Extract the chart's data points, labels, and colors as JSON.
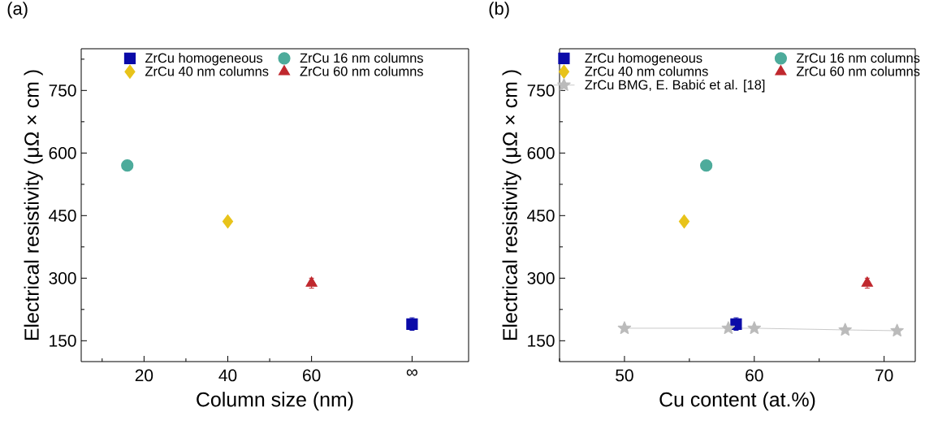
{
  "chart_data": [
    {
      "type": "scatter",
      "title": "(a)",
      "xlabel": "Column size (nm)",
      "ylabel": "Electrical resistivity (μΩ × cm )",
      "xlim": [
        5,
        97.5
      ],
      "ylim": [
        100,
        850
      ],
      "xticks": [
        20,
        40,
        60,
        {
          "value": 84,
          "label": "∞"
        }
      ],
      "yticks": [
        150,
        300,
        450,
        600,
        750
      ],
      "legend": "top",
      "series": [
        {
          "name": "ZrCu homogeneous",
          "color": "#0a0aa8",
          "marker": "square",
          "x": [
            84
          ],
          "values": [
            190
          ],
          "errors": [
            15
          ]
        },
        {
          "name": "ZrCu 16 nm columns",
          "color": "#4dab9b",
          "marker": "circle",
          "x": [
            16
          ],
          "values": [
            570
          ]
        },
        {
          "name": "ZrCu 40 nm columns",
          "color": "#e8c31a",
          "marker": "diamond",
          "x": [
            40
          ],
          "values": [
            436
          ]
        },
        {
          "name": "ZrCu 60 nm columns",
          "color": "#c0282e",
          "marker": "triangle",
          "x": [
            60
          ],
          "values": [
            288
          ],
          "errors": [
            12
          ]
        }
      ]
    },
    {
      "type": "scatter",
      "title": "(b)",
      "xlabel": "Cu content (at.%)",
      "ylabel": "Electrical resistivity (μΩ × cm )",
      "xlim": [
        45,
        72.4
      ],
      "ylim": [
        100,
        850
      ],
      "xticks": [
        50,
        60,
        70
      ],
      "yticks": [
        150,
        300,
        450,
        600,
        750
      ],
      "legend": "top",
      "series": [
        {
          "name": "ZrCu homogeneous",
          "color": "#0a0aa8",
          "marker": "square",
          "x": [
            58.6
          ],
          "values": [
            190
          ],
          "errors": [
            15
          ]
        },
        {
          "name": "ZrCu 16 nm columns",
          "color": "#4dab9b",
          "marker": "circle",
          "x": [
            56.3
          ],
          "values": [
            570
          ]
        },
        {
          "name": "ZrCu 40 nm columns",
          "color": "#e8c31a",
          "marker": "diamond",
          "x": [
            54.6
          ],
          "values": [
            436
          ]
        },
        {
          "name": "ZrCu 60 nm columns",
          "color": "#c0282e",
          "marker": "triangle",
          "x": [
            68.7
          ],
          "values": [
            288
          ],
          "errors": [
            12
          ]
        },
        {
          "name": "ZrCu BMG, E. Babić et al. [18]",
          "type": "line",
          "color": "#bbbbbb",
          "marker": "star",
          "x": [
            50,
            58,
            60,
            67,
            71
          ],
          "values": [
            180,
            180,
            180,
            176,
            174
          ]
        }
      ]
    }
  ]
}
